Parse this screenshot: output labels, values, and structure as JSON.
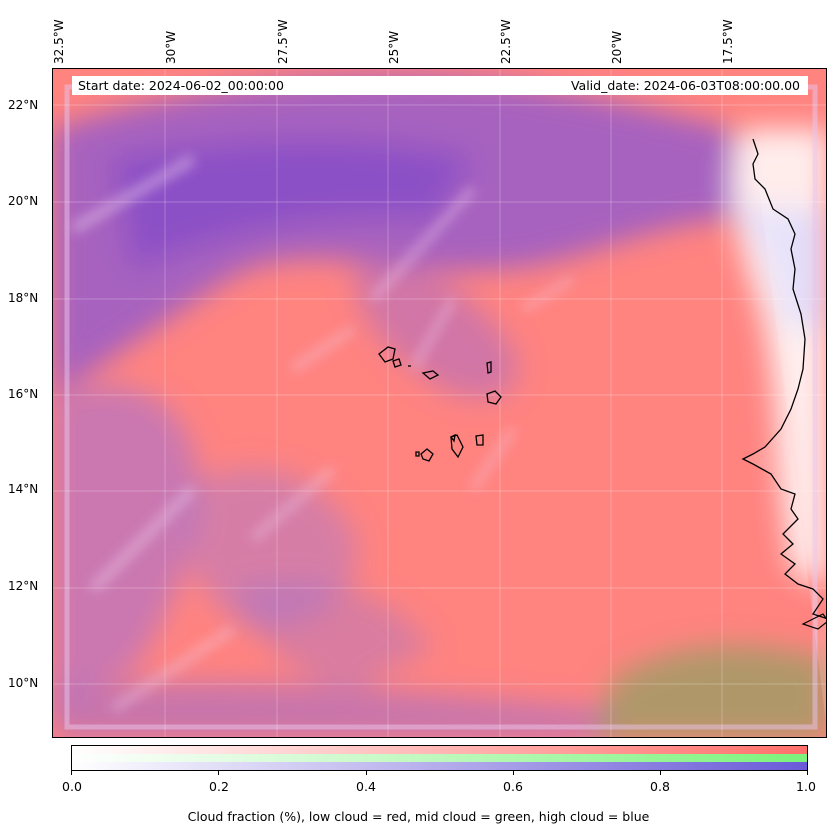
{
  "map": {
    "lon_ticks": [
      "32.5°W",
      "30°W",
      "27.5°W",
      "25°W",
      "22.5°W",
      "20°W",
      "17.5°W"
    ],
    "lat_ticks": [
      "22°N",
      "20°N",
      "18°N",
      "16°N",
      "14°N",
      "12°N",
      "10°N"
    ],
    "extent": {
      "lon_min": -33.0,
      "lon_max": -15.8,
      "lat_min": 8.9,
      "lat_max": 22.8
    },
    "gridlines": true
  },
  "info": {
    "start_date": "Start date: 2024-06-02_00:00:00",
    "valid_date": "Valid_date: 2024-06-03T08:00:00.00"
  },
  "colorbar": {
    "ticks": [
      "0.0",
      "0.2",
      "0.4",
      "0.6",
      "0.8",
      "1.0"
    ],
    "title": "Cloud fraction (%), low cloud = red, mid cloud = green, high cloud = blue",
    "colors": {
      "low": "#ff6f6b",
      "mid": "#7cf27a",
      "high": "#6a5ad8"
    }
  }
}
